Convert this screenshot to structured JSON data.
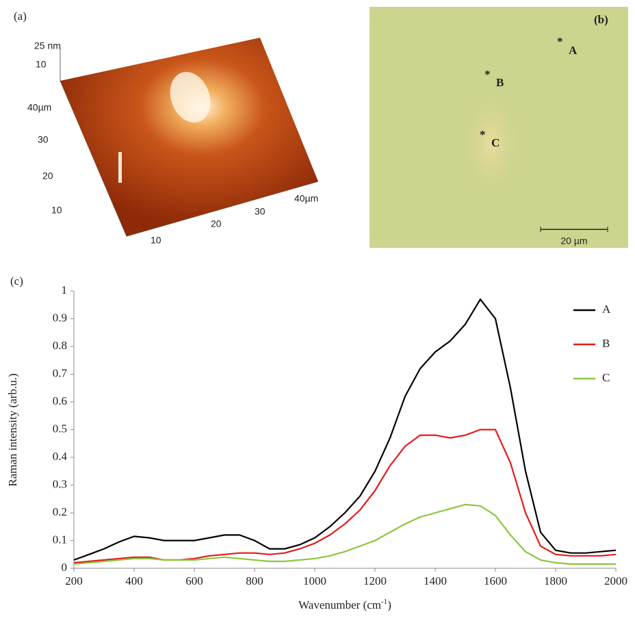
{
  "panel_a": {
    "label": "(a)",
    "z_ticks": [
      "25 nm",
      "10"
    ],
    "y_ticks": [
      "40µm",
      "30",
      "20",
      "10"
    ],
    "x_ticks": [
      "10",
      "20",
      "30",
      "40µm"
    ]
  },
  "panel_b": {
    "label": "(b)",
    "points": [
      {
        "marker": "*",
        "label": "A"
      },
      {
        "marker": "*",
        "label": "B"
      },
      {
        "marker": "*",
        "label": "C"
      }
    ],
    "scale_bar": "20 µm"
  },
  "chart_data": {
    "type": "line",
    "panel_label": "(c)",
    "xlabel": "Wavenumber (cm",
    "xlabel_sup": "-1",
    "xlabel_end": ")",
    "ylabel": "Raman  intensity  (arb.u.)",
    "x": [
      200,
      250,
      300,
      350,
      400,
      450,
      500,
      550,
      600,
      650,
      700,
      750,
      800,
      850,
      900,
      950,
      1000,
      1050,
      1100,
      1150,
      1200,
      1250,
      1300,
      1350,
      1400,
      1450,
      1500,
      1550,
      1600,
      1650,
      1700,
      1750,
      1800,
      1850,
      1900,
      1950,
      2000
    ],
    "series": [
      {
        "name": "A",
        "color": "#000000",
        "values": [
          0.03,
          0.05,
          0.07,
          0.095,
          0.115,
          0.11,
          0.1,
          0.1,
          0.1,
          0.11,
          0.12,
          0.12,
          0.1,
          0.07,
          0.07,
          0.085,
          0.11,
          0.15,
          0.2,
          0.26,
          0.35,
          0.47,
          0.62,
          0.72,
          0.78,
          0.82,
          0.88,
          0.97,
          0.9,
          0.65,
          0.35,
          0.13,
          0.065,
          0.055,
          0.055,
          0.06,
          0.065
        ]
      },
      {
        "name": "B",
        "color": "#e31a1c",
        "values": [
          0.02,
          0.025,
          0.03,
          0.035,
          0.04,
          0.04,
          0.03,
          0.03,
          0.035,
          0.045,
          0.05,
          0.055,
          0.055,
          0.05,
          0.055,
          0.07,
          0.09,
          0.12,
          0.16,
          0.21,
          0.28,
          0.37,
          0.44,
          0.48,
          0.48,
          0.47,
          0.48,
          0.5,
          0.5,
          0.38,
          0.2,
          0.08,
          0.05,
          0.045,
          0.045,
          0.045,
          0.05
        ]
      },
      {
        "name": "C",
        "color": "#8cc63f",
        "values": [
          0.015,
          0.02,
          0.025,
          0.03,
          0.035,
          0.035,
          0.03,
          0.03,
          0.03,
          0.035,
          0.04,
          0.035,
          0.03,
          0.025,
          0.025,
          0.03,
          0.035,
          0.045,
          0.06,
          0.08,
          0.1,
          0.13,
          0.16,
          0.185,
          0.2,
          0.215,
          0.23,
          0.225,
          0.19,
          0.12,
          0.06,
          0.03,
          0.02,
          0.015,
          0.015,
          0.015,
          0.015
        ]
      }
    ],
    "xlim": [
      200,
      2000
    ],
    "xticks": [
      200,
      400,
      600,
      800,
      1000,
      1200,
      1400,
      1600,
      1800,
      2000
    ],
    "ylim": [
      0,
      1
    ],
    "yticks": [
      0,
      0.1,
      0.2,
      0.3,
      0.4,
      0.5,
      0.6,
      0.7,
      0.8,
      0.9,
      1
    ],
    "legend": "upper right"
  }
}
